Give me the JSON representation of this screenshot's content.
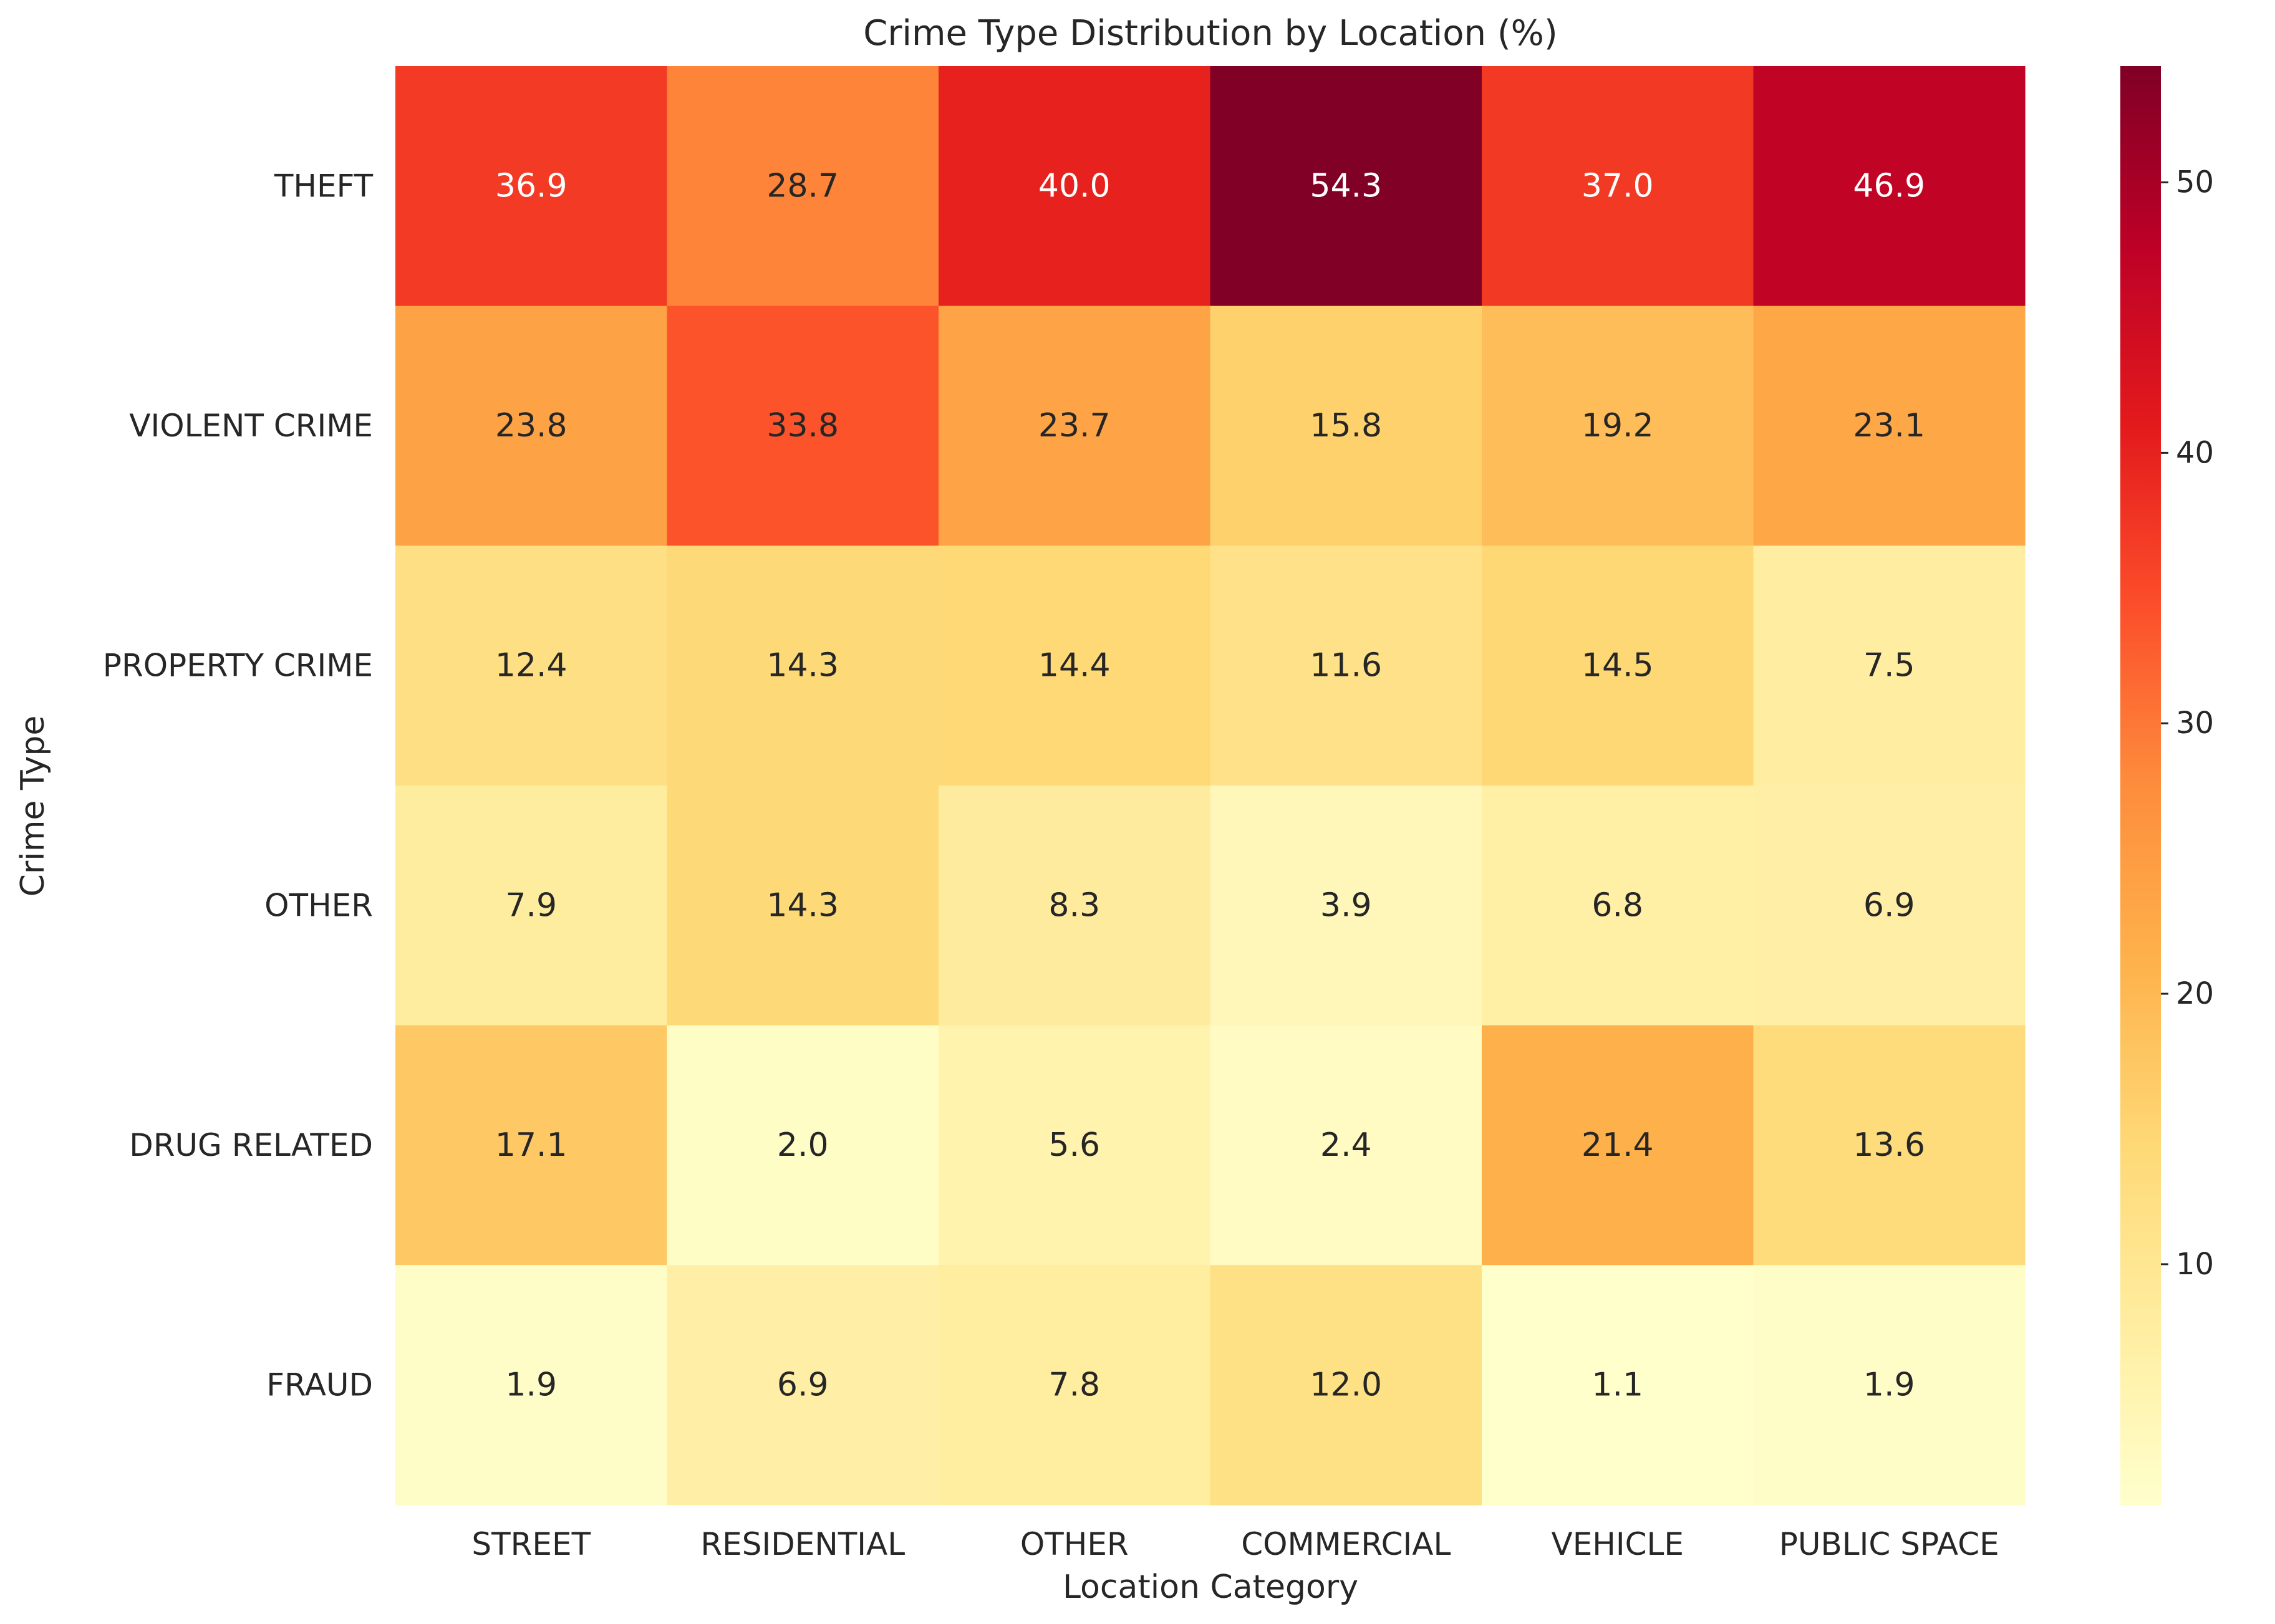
{
  "chart_data": {
    "type": "heatmap",
    "title": "Crime Type Distribution by Location (%)",
    "xlabel": "Location Category",
    "ylabel": "Crime Type",
    "columns": [
      "STREET",
      "RESIDENTIAL",
      "OTHER",
      "COMMERCIAL",
      "VEHICLE",
      "PUBLIC SPACE"
    ],
    "rows": [
      "THEFT",
      "VIOLENT CRIME",
      "PROPERTY CRIME",
      "OTHER",
      "DRUG RELATED",
      "FRAUD"
    ],
    "values": [
      [
        36.9,
        28.7,
        40.0,
        54.3,
        37.0,
        46.9
      ],
      [
        23.8,
        33.8,
        23.7,
        15.8,
        19.2,
        23.1
      ],
      [
        12.4,
        14.3,
        14.4,
        11.6,
        14.5,
        7.5
      ],
      [
        7.9,
        14.3,
        8.3,
        3.9,
        6.8,
        6.9
      ],
      [
        17.1,
        2.0,
        5.6,
        2.4,
        21.4,
        13.6
      ],
      [
        1.9,
        6.9,
        7.8,
        12.0,
        1.1,
        1.9
      ]
    ],
    "value_format": "0.0",
    "colormap": "YlOrRd",
    "color_range": [
      1.1,
      54.3
    ],
    "colorbar": {
      "ticks": [
        10,
        20,
        30,
        40,
        50
      ],
      "placement": "right"
    },
    "grid": false,
    "legend": "none"
  },
  "colors": {
    "annotation_light": "#ffffff",
    "annotation_dark": "#262626",
    "text": "#262626"
  }
}
